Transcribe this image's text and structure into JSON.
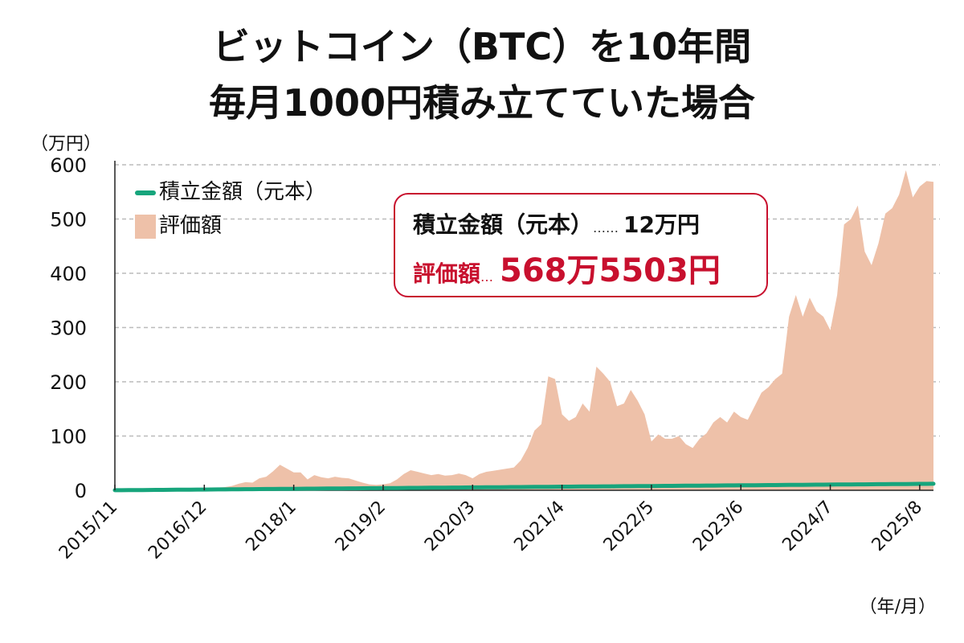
{
  "title_line1": "ビットコイン（BTC）を10年間",
  "title_line2": "毎月1000円積み立てていた場合",
  "summary": {
    "principal_label": "積立金額（元本）",
    "principal_dots": "……",
    "principal_value": "12万円",
    "valuation_label": "評価額",
    "valuation_dots": "…",
    "valuation_value": "568万5503円"
  },
  "colors": {
    "principal": "#17a57c",
    "valuation": "#eec1a9",
    "accent": "#c8102e"
  },
  "chart_data": {
    "type": "area",
    "ylabel": "（万円）",
    "xlabel": "（年/月）",
    "ylim": [
      0,
      600
    ],
    "yticks": [
      0,
      100,
      200,
      300,
      400,
      500,
      600
    ],
    "grid": "horizontal dashed",
    "legend_placement": "top-left",
    "start_month": "2015/11",
    "xtick_labels": [
      "2015/11",
      "2016/12",
      "2018/1",
      "2019/2",
      "2020/3",
      "2021/4",
      "2022/5",
      "2023/6",
      "2024/7",
      "2025/8"
    ],
    "series": [
      {
        "name": "積立金額（元本）",
        "kind": "line",
        "values": [
          0.1,
          0.2,
          0.3,
          0.4,
          0.5,
          0.6,
          0.7,
          0.8,
          0.9,
          1.0,
          1.1,
          1.2,
          1.3,
          1.4,
          1.5,
          1.6,
          1.7,
          1.8,
          1.9,
          2.0,
          2.1,
          2.2,
          2.3,
          2.4,
          2.5,
          2.6,
          2.7,
          2.8,
          2.9,
          3.0,
          3.1,
          3.2,
          3.3,
          3.4,
          3.5,
          3.6,
          3.7,
          3.8,
          3.9,
          4.0,
          4.1,
          4.2,
          4.3,
          4.4,
          4.5,
          4.6,
          4.7,
          4.8,
          4.9,
          5.0,
          5.1,
          5.2,
          5.3,
          5.4,
          5.5,
          5.6,
          5.7,
          5.8,
          5.9,
          6.0,
          6.1,
          6.2,
          6.3,
          6.4,
          6.5,
          6.6,
          6.7,
          6.8,
          6.9,
          7.0,
          7.1,
          7.2,
          7.3,
          7.4,
          7.5,
          7.6,
          7.7,
          7.8,
          7.9,
          8.0,
          8.1,
          8.2,
          8.3,
          8.4,
          8.5,
          8.6,
          8.7,
          8.8,
          8.9,
          9.0,
          9.1,
          9.2,
          9.3,
          9.4,
          9.5,
          9.6,
          9.7,
          9.8,
          9.9,
          10.0,
          10.1,
          10.2,
          10.3,
          10.4,
          10.5,
          10.6,
          10.7,
          10.8,
          10.9,
          11.0,
          11.1,
          11.2,
          11.3,
          11.4,
          11.5,
          11.6,
          11.7,
          11.8,
          11.9,
          12.0
        ]
      },
      {
        "name": "評価額",
        "kind": "area",
        "values": [
          0.1,
          0.2,
          0.3,
          0.4,
          0.5,
          0.6,
          0.8,
          1,
          1.2,
          1.5,
          2,
          2.5,
          3,
          3.5,
          4,
          5,
          6,
          8,
          12,
          15,
          14,
          22,
          25,
          35,
          47,
          40,
          33,
          33,
          20,
          28,
          24,
          22,
          25,
          23,
          22,
          18,
          14,
          11,
          10,
          11,
          13,
          20,
          30,
          37,
          34,
          31,
          28,
          30,
          27,
          28,
          31,
          28,
          22,
          30,
          34,
          36,
          38,
          40,
          42,
          55,
          78,
          110,
          122,
          210,
          205,
          140,
          128,
          135,
          160,
          145,
          228,
          215,
          200,
          155,
          160,
          185,
          165,
          140,
          90,
          103,
          95,
          95,
          100,
          85,
          78,
          95,
          105,
          125,
          135,
          125,
          145,
          135,
          130,
          155,
          180,
          190,
          205,
          215,
          320,
          360,
          320,
          355,
          330,
          320,
          295,
          360,
          490,
          500,
          525,
          440,
          415,
          455,
          510,
          520,
          545,
          590,
          540,
          560,
          570,
          568.55
        ]
      }
    ]
  }
}
